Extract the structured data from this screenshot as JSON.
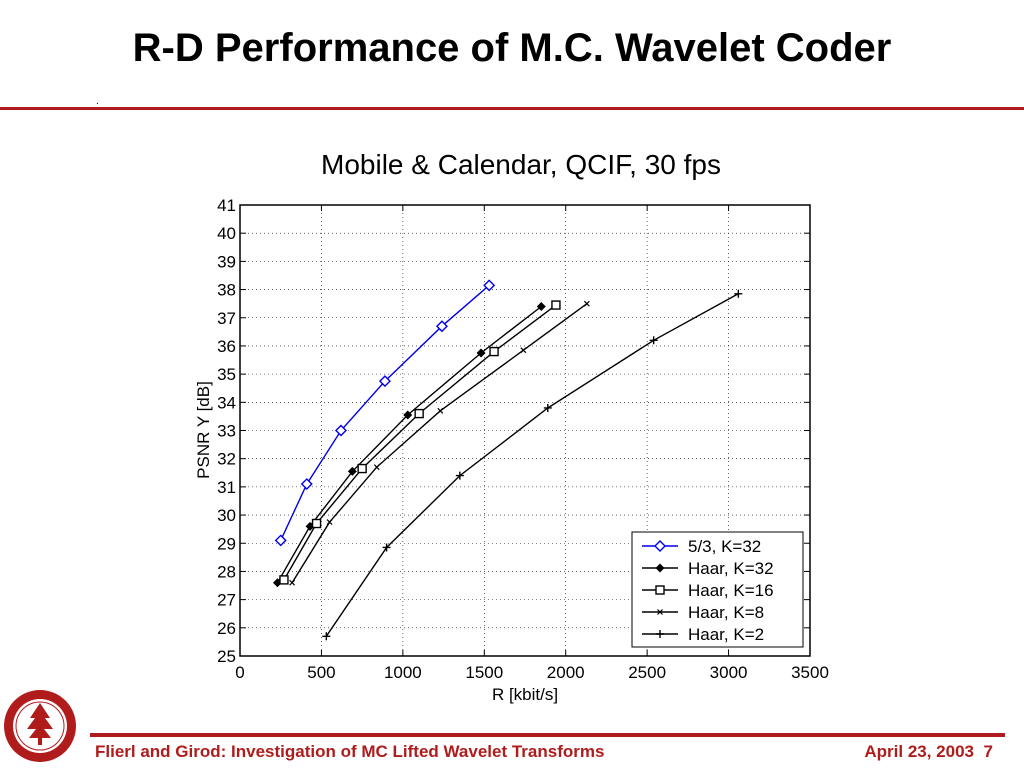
{
  "slide": {
    "title": "R-D Performance of M.C. Wavelet Coder",
    "title_dot": ".",
    "footer_text": "Flierl and Girod: Investigation of MC Lifted Wavelet Transforms",
    "date": "April 23, 2003",
    "page_number": "7",
    "accent_color": "#b01c1c"
  },
  "chart_data": {
    "type": "line",
    "title": "Mobile & Calendar, QCIF, 30 fps",
    "xlabel": "R [kbit/s]",
    "ylabel": "PSNR Y [dB]",
    "xlim": [
      0,
      3500
    ],
    "ylim": [
      25,
      41
    ],
    "xticks": [
      0,
      500,
      1000,
      1500,
      2000,
      2500,
      3000,
      3500
    ],
    "yticks": [
      25,
      26,
      27,
      28,
      29,
      30,
      31,
      32,
      33,
      34,
      35,
      36,
      37,
      38,
      39,
      40,
      41
    ],
    "grid": true,
    "legend_position": "bottom-right",
    "series": [
      {
        "name": "5/3, K=32",
        "color": "#0000ee",
        "marker": "diamond",
        "points": [
          [
            250,
            29.1
          ],
          [
            410,
            31.1
          ],
          [
            620,
            33.0
          ],
          [
            890,
            34.75
          ],
          [
            1240,
            36.7
          ],
          [
            1530,
            38.15
          ]
        ]
      },
      {
        "name": "Haar, K=32",
        "color": "#000000",
        "marker": "diamond-filled",
        "points": [
          [
            230,
            27.6
          ],
          [
            430,
            29.6
          ],
          [
            690,
            31.55
          ],
          [
            1030,
            33.55
          ],
          [
            1480,
            35.75
          ],
          [
            1850,
            37.4
          ]
        ]
      },
      {
        "name": "Haar, K=16",
        "color": "#000000",
        "marker": "square",
        "points": [
          [
            270,
            27.7
          ],
          [
            470,
            29.7
          ],
          [
            750,
            31.65
          ],
          [
            1100,
            33.6
          ],
          [
            1560,
            35.8
          ],
          [
            1940,
            37.45
          ]
        ]
      },
      {
        "name": "Haar, K=8",
        "color": "#000000",
        "marker": "x",
        "points": [
          [
            320,
            27.6
          ],
          [
            550,
            29.75
          ],
          [
            840,
            31.7
          ],
          [
            1230,
            33.7
          ],
          [
            1740,
            35.85
          ],
          [
            2130,
            37.5
          ]
        ]
      },
      {
        "name": "Haar, K=2",
        "color": "#000000",
        "marker": "plus",
        "points": [
          [
            530,
            25.7
          ],
          [
            900,
            28.85
          ],
          [
            1350,
            31.4
          ],
          [
            1890,
            33.8
          ],
          [
            2540,
            36.2
          ],
          [
            3060,
            37.85
          ]
        ]
      }
    ]
  }
}
